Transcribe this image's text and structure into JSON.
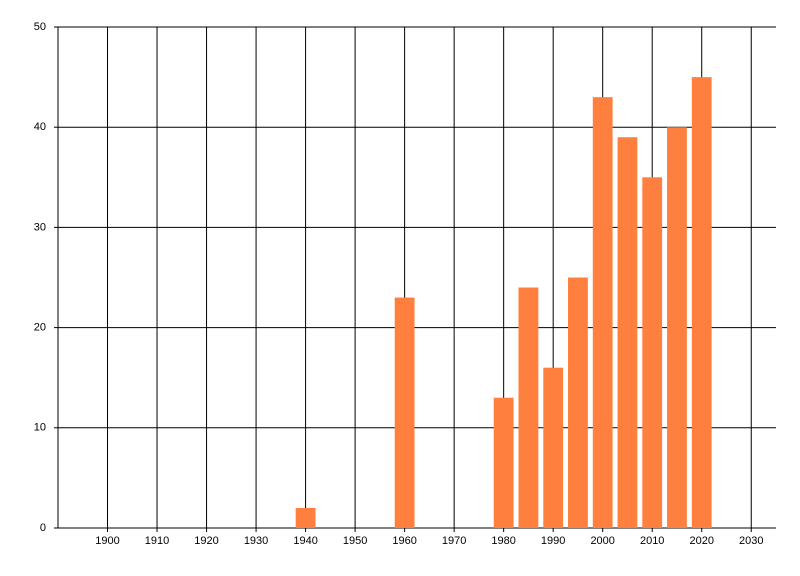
{
  "chart_data": {
    "type": "bar",
    "x": [
      1940,
      1960,
      1980,
      1985,
      1990,
      1995,
      2000,
      2005,
      2010,
      2015,
      2020
    ],
    "values": [
      2,
      23,
      13,
      24,
      16,
      25,
      43,
      39,
      35,
      40,
      45
    ],
    "color": "#ff7f3f",
    "xlim": [
      1890,
      2035
    ],
    "xticks": [
      1900,
      1910,
      1920,
      1930,
      1940,
      1950,
      1960,
      1970,
      1980,
      1990,
      2000,
      2010,
      2020,
      2030
    ],
    "ylim": [
      0,
      50
    ],
    "yticks": [
      0,
      10,
      20,
      30,
      40,
      50
    ],
    "grid": true
  }
}
